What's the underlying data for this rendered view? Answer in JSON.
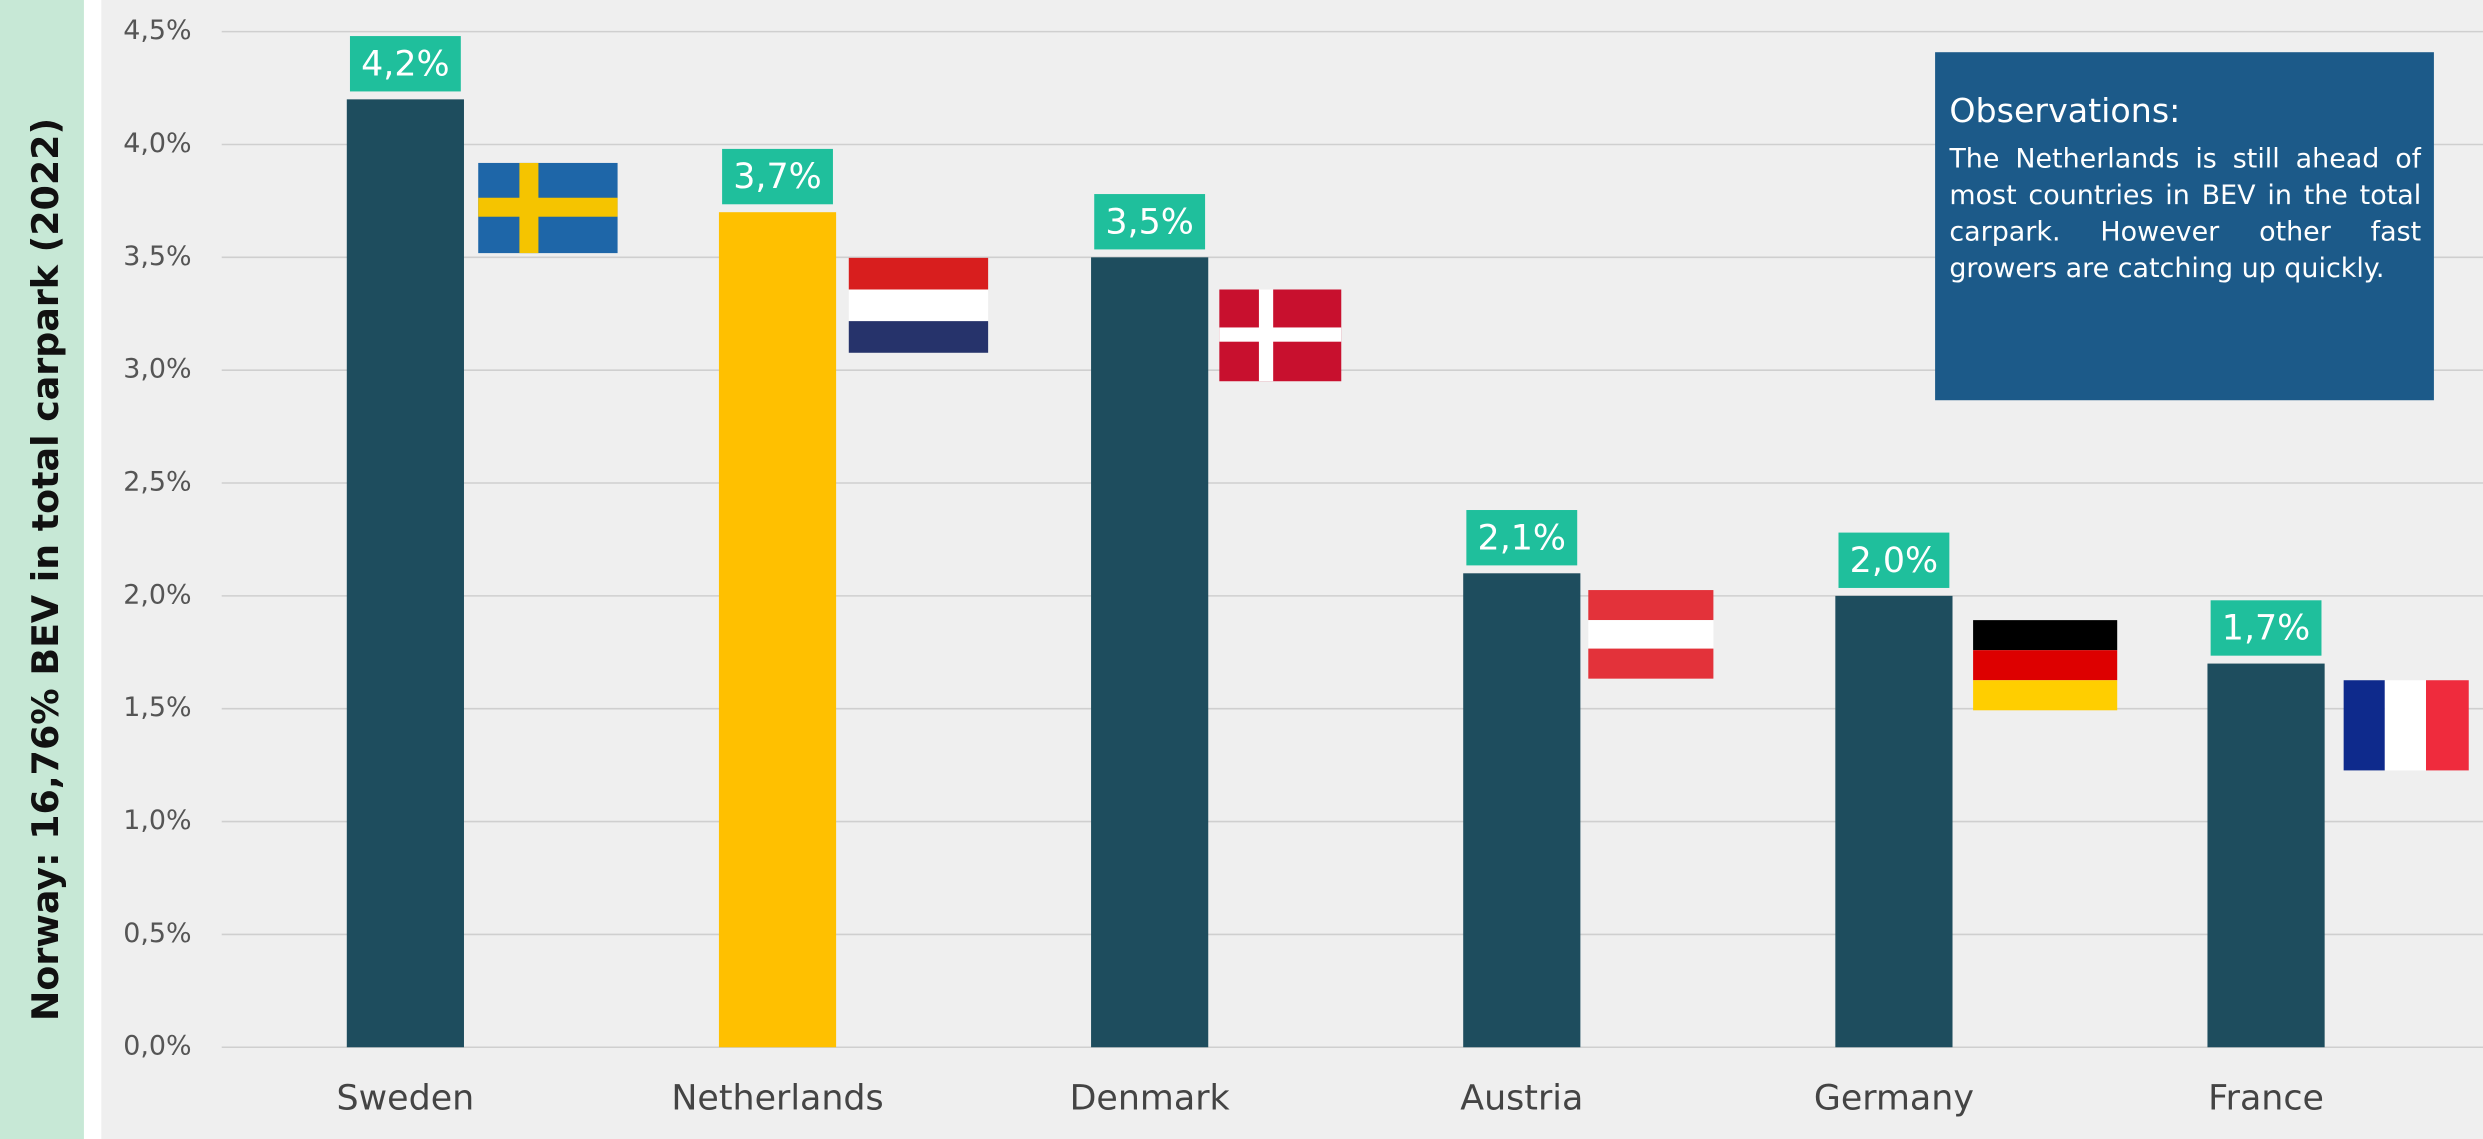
{
  "chart_data": {
    "type": "bar",
    "side_label": "Norway: 16,76% BEV in total carpark (2022)",
    "categories": [
      "Sweden",
      "Netherlands",
      "Denmark",
      "Austria",
      "Germany",
      "France"
    ],
    "values": [
      4.2,
      3.7,
      3.5,
      2.1,
      2.0,
      1.7
    ],
    "value_labels": [
      "4,2%",
      "3,7%",
      "3,5%",
      "2,1%",
      "2,0%",
      "1,7%"
    ],
    "colors": [
      "#1e4d5e",
      "#ffc000",
      "#1e4d5e",
      "#1e4d5e",
      "#1e4d5e",
      "#1e4d5e"
    ],
    "label_color": "#1fbf9c",
    "ylim": [
      0,
      4.5
    ],
    "yticks": [
      {
        "value": 0,
        "label": "0,0%"
      },
      {
        "value": 0.5,
        "label": "0,5%"
      },
      {
        "value": 1,
        "label": "1,0%"
      },
      {
        "value": 1.5,
        "label": "1,5%"
      },
      {
        "value": 2,
        "label": "2,0%"
      },
      {
        "value": 2.5,
        "label": "2,5%"
      },
      {
        "value": 3,
        "label": "3,0%"
      },
      {
        "value": 3.5,
        "label": "3,5%"
      },
      {
        "value": 4,
        "label": "4,0%"
      },
      {
        "value": 4.5,
        "label": "4,5%"
      }
    ],
    "grid": true,
    "annotation": {
      "title": "Observations:",
      "text": "The Netherlands is still ahead of most countries in BEV in the total carpark. However other fast growers are catching up quickly."
    }
  }
}
